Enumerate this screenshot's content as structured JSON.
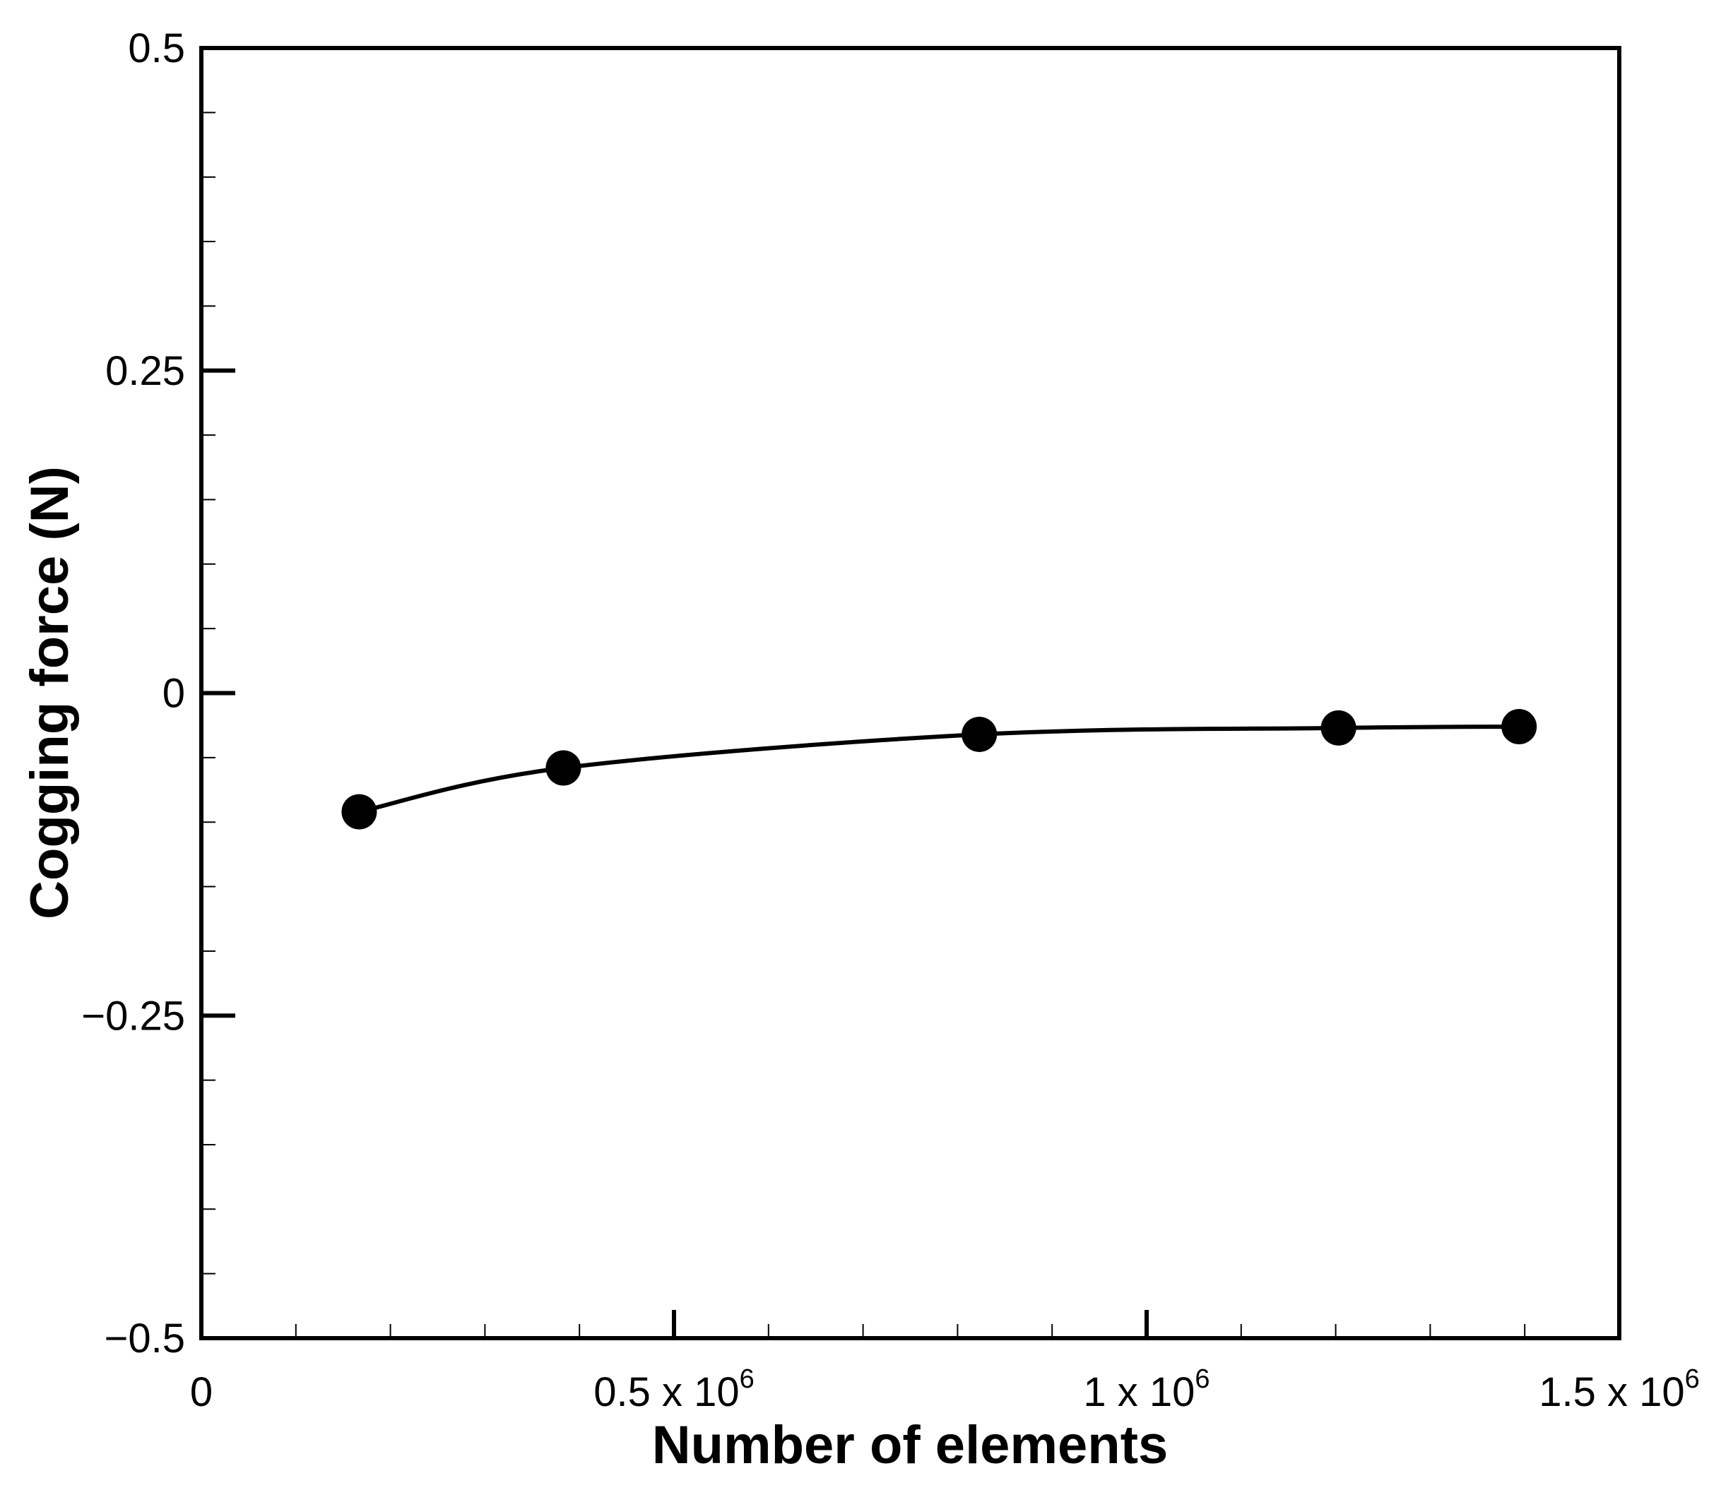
{
  "chart_data": {
    "type": "line",
    "title": "",
    "xlabel": "Number of elements",
    "ylabel": "Cogging force (N)",
    "xlim": [
      0,
      1500000
    ],
    "ylim": [
      -0.5,
      0.5
    ],
    "grid": false,
    "x_ticks": [
      {
        "value": 0,
        "base": "0",
        "exp": ""
      },
      {
        "value": 500000,
        "base": "0.5 x 10",
        "exp": "6"
      },
      {
        "value": 1000000,
        "base": "1 x 10",
        "exp": "6"
      },
      {
        "value": 1500000,
        "base": "1.5 x 10",
        "exp": "6"
      }
    ],
    "y_ticks": [
      {
        "value": 0.5,
        "label": "0.5"
      },
      {
        "value": 0.25,
        "label": "0.25"
      },
      {
        "value": 0,
        "label": "0"
      },
      {
        "value": -0.25,
        "label": "−0.25"
      },
      {
        "value": -0.5,
        "label": "−0.5"
      }
    ],
    "series": [
      {
        "x": [
          167000,
          383000,
          823000,
          1203000,
          1394000
        ],
        "y": [
          -0.092,
          -0.058,
          -0.032,
          -0.027,
          -0.026
        ],
        "color": "#000000",
        "marker": "filled-circle",
        "smooth": true
      }
    ]
  }
}
